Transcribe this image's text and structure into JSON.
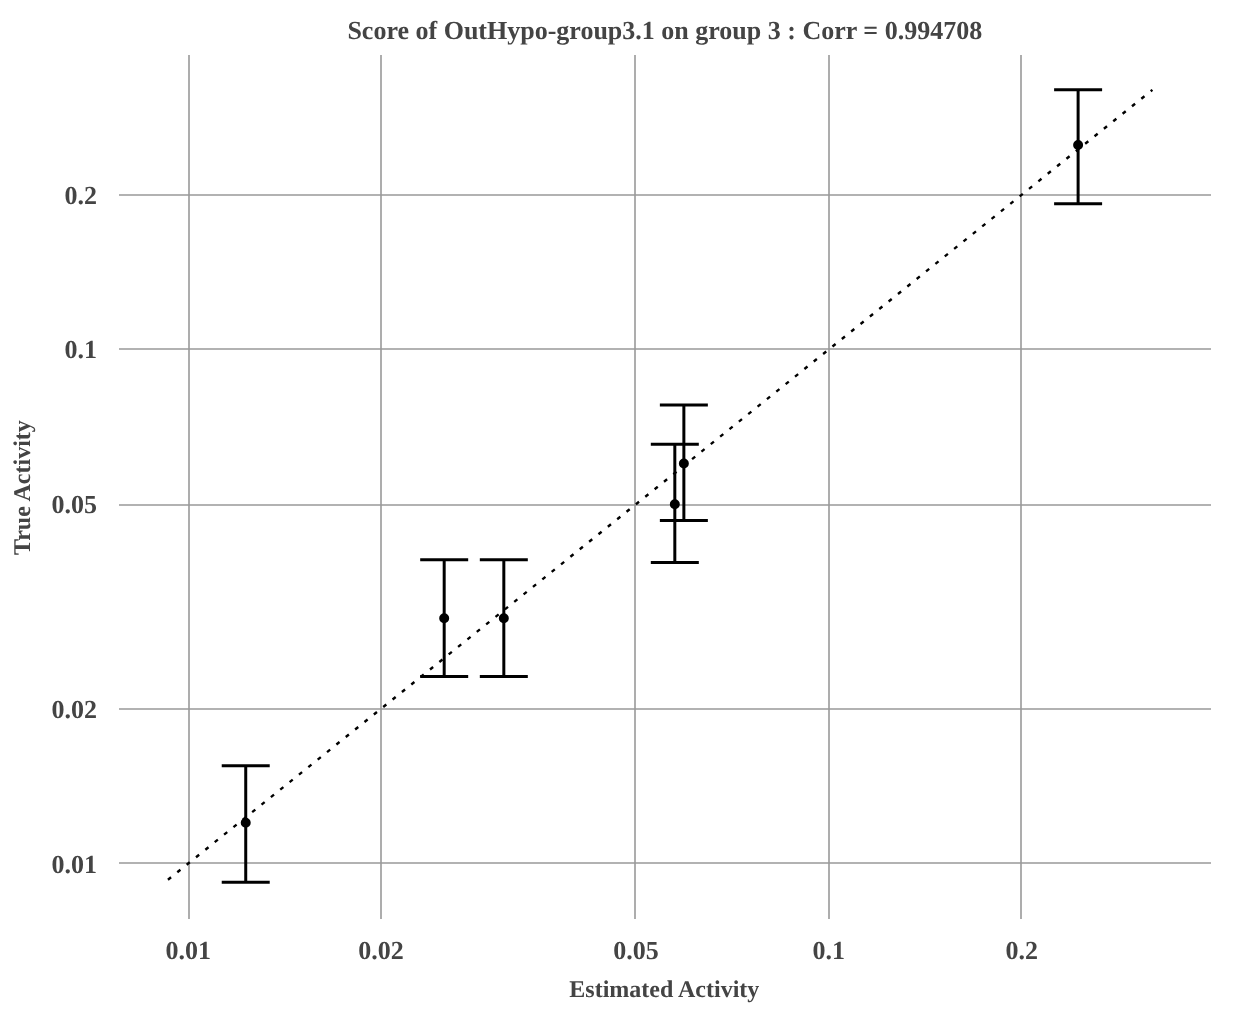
{
  "chart_data": {
    "type": "scatter",
    "title": "Score of OutHypo-group3.1 on group 3 : Corr = 0.994708",
    "xlabel": "Estimated Activity",
    "ylabel": "True Activity",
    "log": "xy",
    "grid": true,
    "xlim": [
      0.0078,
      0.395
    ],
    "ylim": [
      0.0078,
      0.374
    ],
    "xticks": [
      0.01,
      0.02,
      0.05,
      0.1,
      0.2
    ],
    "yticks": [
      0.01,
      0.02,
      0.05,
      0.1,
      0.2
    ],
    "series": [
      {
        "color": "#000000",
        "marker": "circle",
        "x": [
          0.0123,
          0.0251,
          0.0311,
          0.0575,
          0.0594,
          0.245
        ],
        "values": [
          0.012,
          0.03,
          0.03,
          0.05,
          0.06,
          0.25
        ],
        "errors": [
          [
            0.0092,
            0.0155
          ],
          [
            0.0231,
            0.039
          ],
          [
            0.0231,
            0.039
          ],
          [
            0.0385,
            0.0654
          ],
          [
            0.0465,
            0.078
          ],
          [
            0.192,
            0.32
          ]
        ]
      },
      {
        "type": "line",
        "color": "#000000",
        "line_style": "dotted",
        "x": [
          0.0093,
          0.32
        ],
        "values": [
          0.0093,
          0.32
        ]
      }
    ]
  }
}
